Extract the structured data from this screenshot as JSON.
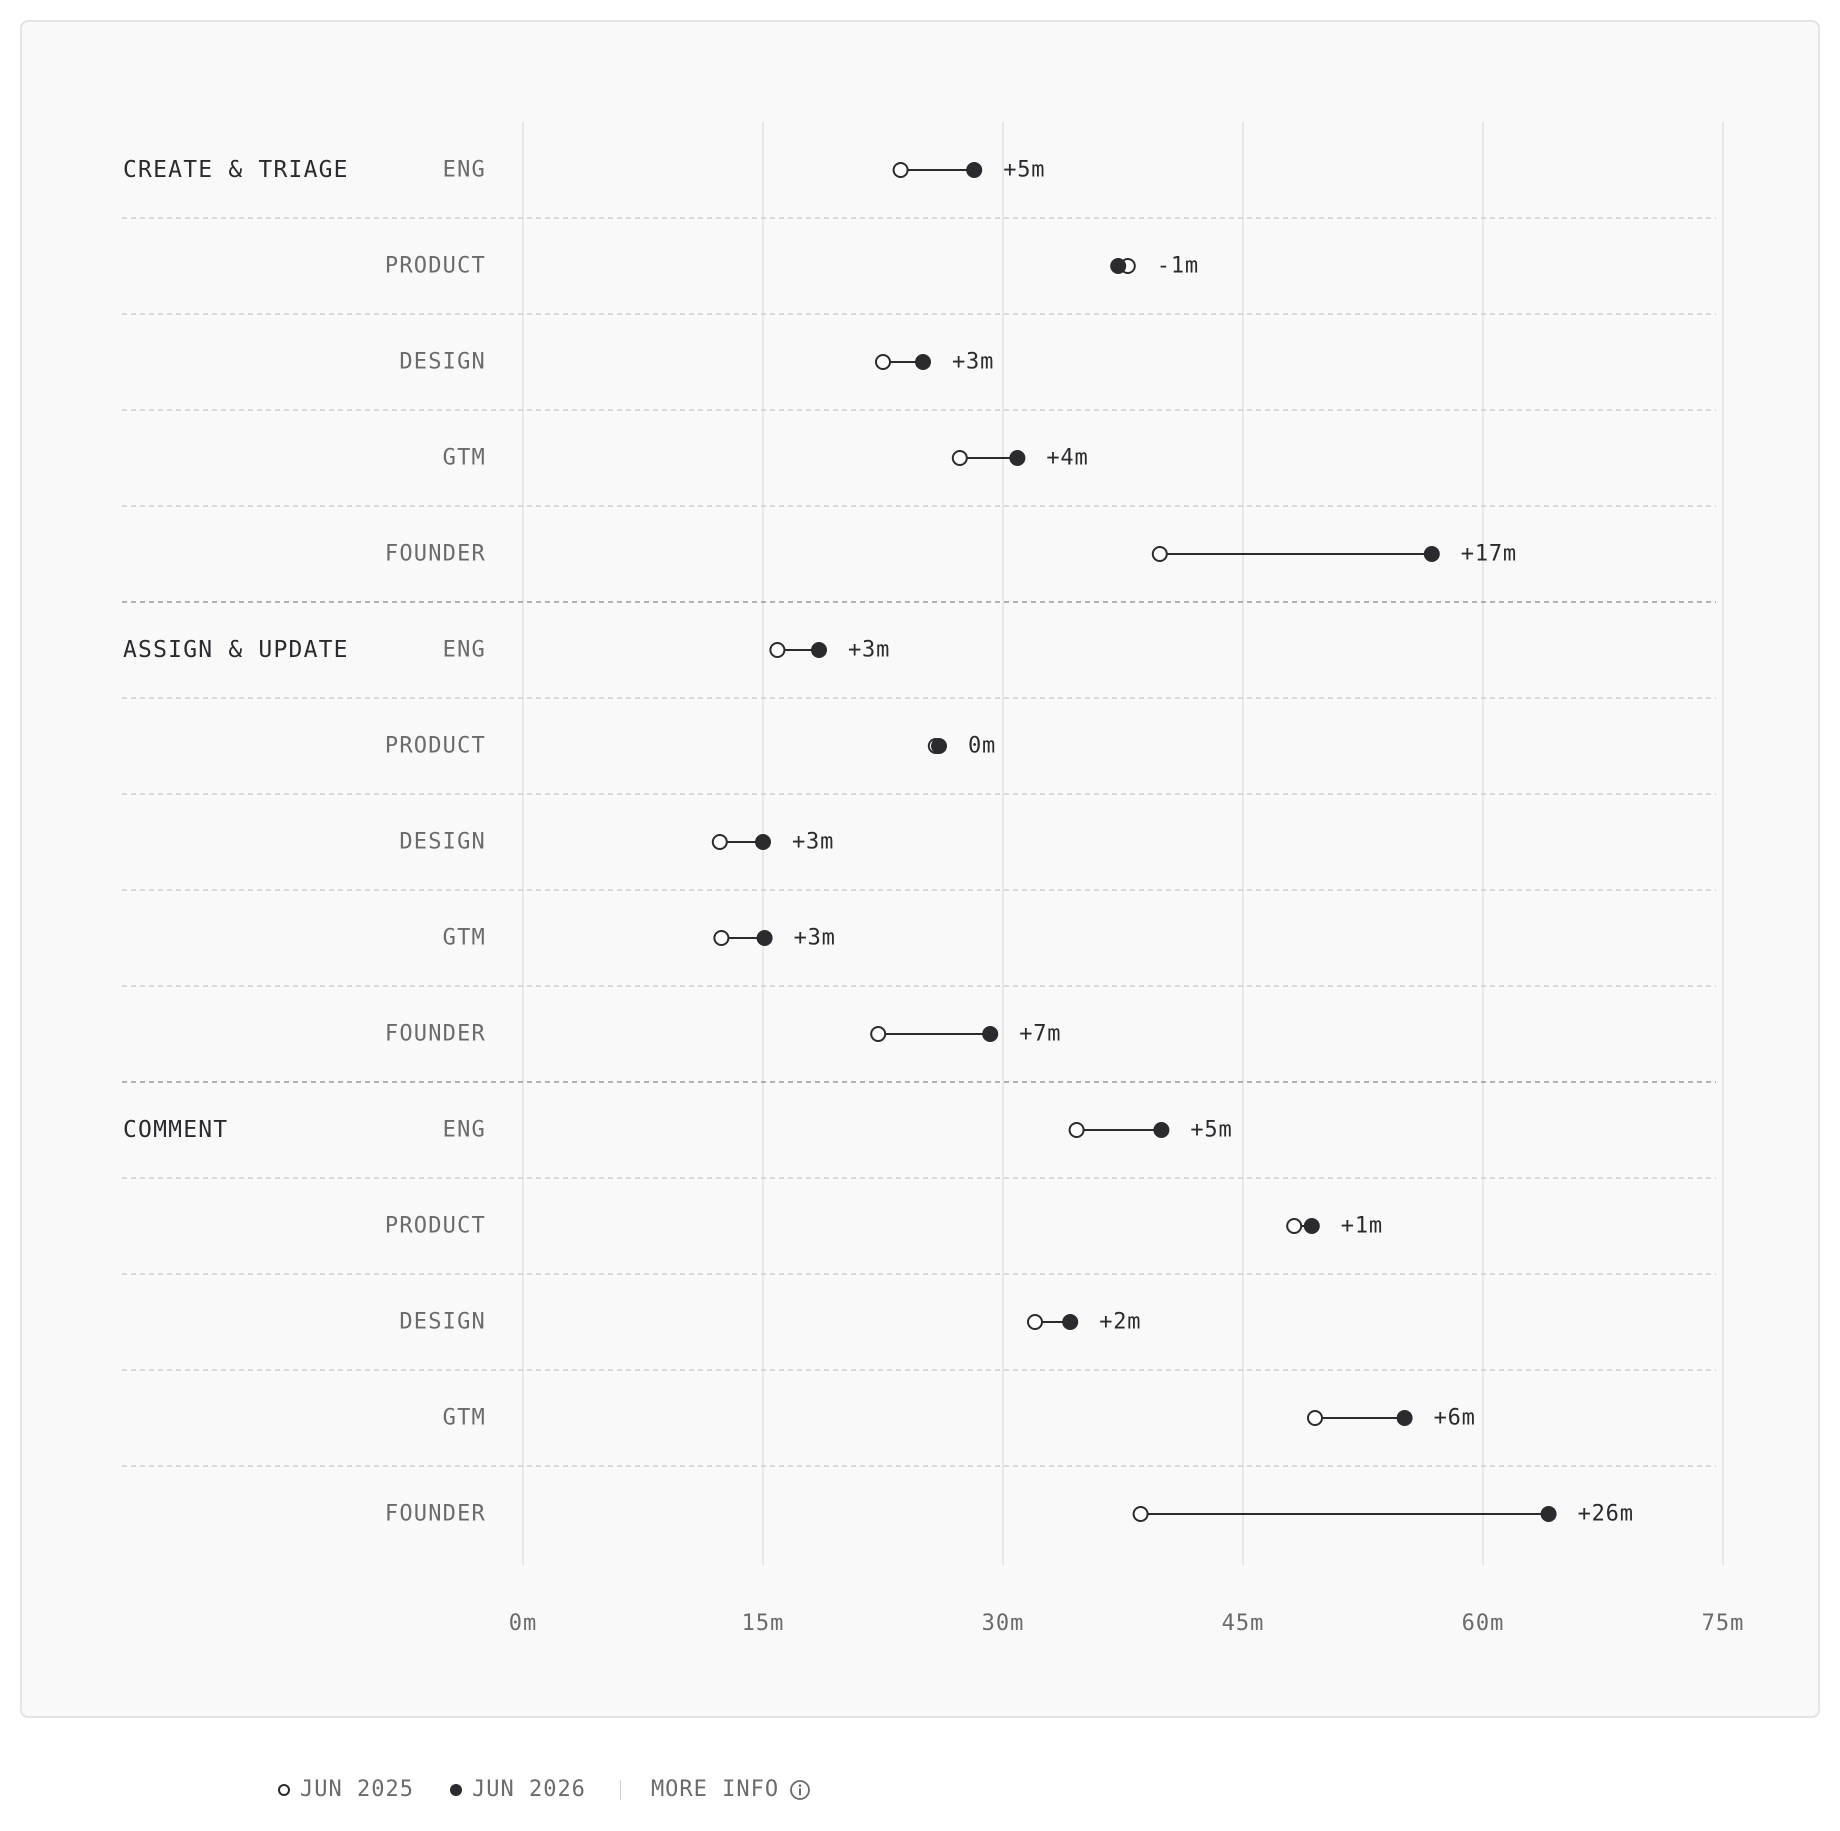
{
  "chart_data": {
    "type": "dumbbell",
    "x_unit": "minutes",
    "xlim": [
      0,
      75
    ],
    "x_ticks": [
      0,
      15,
      30,
      45,
      60,
      75
    ],
    "x_tick_labels": [
      "0m",
      "15m",
      "30m",
      "45m",
      "60m",
      "75m"
    ],
    "grid": true,
    "legend_position": "bottom-left",
    "series": [
      {
        "name": "JUN 2025",
        "marker": "open"
      },
      {
        "name": "JUN 2026",
        "marker": "filled"
      }
    ],
    "groups": [
      {
        "name": "CREATE & TRIAGE",
        "rows": [
          {
            "role": "ENG",
            "jun_2025": 23.6,
            "jun_2026": 28.2,
            "delta": "+5m"
          },
          {
            "role": "PRODUCT",
            "jun_2025": 37.8,
            "jun_2026": 37.2,
            "delta": "-1m"
          },
          {
            "role": "DESIGN",
            "jun_2025": 22.5,
            "jun_2026": 25.0,
            "delta": "+3m"
          },
          {
            "role": "GTM",
            "jun_2025": 27.3,
            "jun_2026": 30.9,
            "delta": "+4m"
          },
          {
            "role": "FOUNDER",
            "jun_2025": 39.8,
            "jun_2026": 56.8,
            "delta": "+17m"
          }
        ]
      },
      {
        "name": "ASSIGN & UPDATE",
        "rows": [
          {
            "role": "ENG",
            "jun_2025": 15.9,
            "jun_2026": 18.5,
            "delta": "+3m"
          },
          {
            "role": "PRODUCT",
            "jun_2025": 25.8,
            "jun_2026": 26.0,
            "delta": "0m"
          },
          {
            "role": "DESIGN",
            "jun_2025": 12.3,
            "jun_2026": 15.0,
            "delta": "+3m"
          },
          {
            "role": "GTM",
            "jun_2025": 12.4,
            "jun_2026": 15.1,
            "delta": "+3m"
          },
          {
            "role": "FOUNDER",
            "jun_2025": 22.2,
            "jun_2026": 29.2,
            "delta": "+7m"
          }
        ]
      },
      {
        "name": "COMMENT",
        "rows": [
          {
            "role": "ENG",
            "jun_2025": 34.6,
            "jun_2026": 39.9,
            "delta": "+5m"
          },
          {
            "role": "PRODUCT",
            "jun_2025": 48.2,
            "jun_2026": 49.3,
            "delta": "+1m"
          },
          {
            "role": "DESIGN",
            "jun_2025": 32.0,
            "jun_2026": 34.2,
            "delta": "+2m"
          },
          {
            "role": "GTM",
            "jun_2025": 49.5,
            "jun_2026": 55.1,
            "delta": "+6m"
          },
          {
            "role": "FOUNDER",
            "jun_2025": 38.6,
            "jun_2026": 64.1,
            "delta": "+26m"
          }
        ]
      }
    ]
  },
  "legend": {
    "series_a_label": "JUN 2025",
    "series_b_label": "JUN 2026",
    "more_info_label": "MORE INFO"
  },
  "colors": {
    "frame_background": "#f9f9f9",
    "frame_border": "#e4e4e4",
    "dot": "#2b2b2f",
    "group_label": "#2b2b2f",
    "role_label": "#6b6b6b",
    "tick_label": "#6b6b6b",
    "gridline": "#e2e2e2",
    "row_divider": "#cfcfcf",
    "group_divider": "#9a9a9a"
  },
  "icons": {
    "more_info": "info-circle-icon"
  }
}
